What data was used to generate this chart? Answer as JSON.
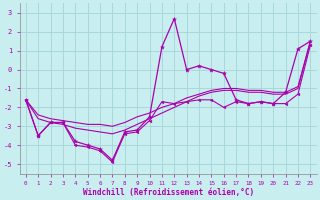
{
  "xlabel": "Windchill (Refroidissement éolien,°C)",
  "xlim": [
    -0.5,
    23.5
  ],
  "ylim": [
    -5.5,
    3.5
  ],
  "yticks": [
    -5,
    -4,
    -3,
    -2,
    -1,
    0,
    1,
    2,
    3
  ],
  "xticks": [
    0,
    1,
    2,
    3,
    4,
    5,
    6,
    7,
    8,
    9,
    10,
    11,
    12,
    13,
    14,
    15,
    16,
    17,
    18,
    19,
    20,
    21,
    22,
    23
  ],
  "bg_color": "#c8eef0",
  "grid_color": "#a8d8dc",
  "line_color": "#aa00aa",
  "line_color2": "#cc00cc",
  "smooth_line1": {
    "x": [
      0,
      1,
      2,
      3,
      4,
      5,
      6,
      7,
      8,
      9,
      10,
      11,
      12,
      13,
      14,
      15,
      16,
      17,
      18,
      19,
      20,
      21,
      22,
      23
    ],
    "y": [
      -1.6,
      -2.6,
      -2.8,
      -2.9,
      -3.1,
      -3.2,
      -3.3,
      -3.4,
      -3.2,
      -2.9,
      -2.6,
      -2.3,
      -2.0,
      -1.7,
      -1.4,
      -1.2,
      -1.1,
      -1.1,
      -1.2,
      -1.2,
      -1.3,
      -1.3,
      -1.0,
      1.5
    ]
  },
  "smooth_line2": {
    "x": [
      0,
      1,
      2,
      3,
      4,
      5,
      6,
      7,
      8,
      9,
      10,
      11,
      12,
      13,
      14,
      15,
      16,
      17,
      18,
      19,
      20,
      21,
      22,
      23
    ],
    "y": [
      -1.6,
      -2.4,
      -2.6,
      -2.7,
      -2.8,
      -2.9,
      -2.9,
      -3.0,
      -2.8,
      -2.5,
      -2.3,
      -2.0,
      -1.8,
      -1.5,
      -1.3,
      -1.1,
      -1.0,
      -1.0,
      -1.1,
      -1.1,
      -1.2,
      -1.2,
      -0.9,
      1.5
    ]
  },
  "spike_line": {
    "x": [
      0,
      1,
      2,
      3,
      4,
      5,
      6,
      7,
      8,
      9,
      10,
      11,
      12,
      13,
      14,
      15,
      16,
      17,
      18,
      19,
      20,
      21,
      22,
      23
    ],
    "y": [
      -1.6,
      -3.5,
      -2.8,
      -2.8,
      -3.8,
      -4.0,
      -4.2,
      -4.8,
      -3.3,
      -3.2,
      -2.5,
      1.2,
      2.7,
      0.0,
      0.2,
      0.0,
      -0.2,
      -1.6,
      -1.8,
      -1.7,
      -1.8,
      -1.2,
      1.1,
      1.5
    ]
  },
  "data_line": {
    "x": [
      0,
      1,
      2,
      3,
      4,
      5,
      6,
      7,
      8,
      9,
      10,
      11,
      12,
      13,
      14,
      15,
      16,
      17,
      18,
      19,
      20,
      21,
      22,
      23
    ],
    "y": [
      -1.6,
      -3.5,
      -2.8,
      -2.8,
      -4.0,
      -4.1,
      -4.3,
      -4.9,
      -3.4,
      -3.3,
      -2.7,
      -1.7,
      -1.8,
      -1.7,
      -1.6,
      -1.6,
      -2.0,
      -1.7,
      -1.8,
      -1.7,
      -1.8,
      -1.8,
      -1.3,
      1.3
    ]
  }
}
